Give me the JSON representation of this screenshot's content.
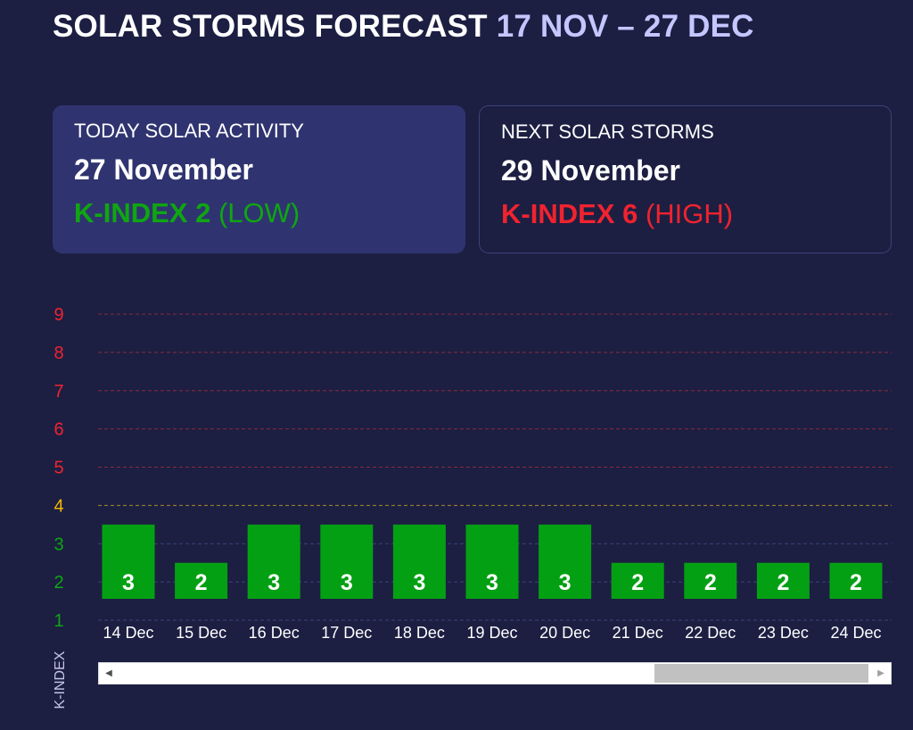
{
  "header": {
    "title": "SOLAR STORMS FORECAST",
    "range": "17 NOV – 27 DEC"
  },
  "today_card": {
    "label": "TODAY SOLAR ACTIVITY",
    "date": "27 November",
    "kindex": "K-INDEX 2",
    "level": "(LOW)"
  },
  "next_card": {
    "label": "NEXT SOLAR STORMS",
    "date": "29 November",
    "kindex": "K-INDEX 6",
    "level": "(HIGH)"
  },
  "colors": {
    "background": "#1c1f42",
    "bar": "#04a013",
    "low": "#0fa611",
    "moderate": "#f5b800",
    "high": "#f0232f"
  },
  "chart_data": {
    "type": "bar",
    "ylabel": "K-INDEX",
    "ylim": [
      1,
      9
    ],
    "yticks": [
      1,
      2,
      3,
      4,
      5,
      6,
      7,
      8,
      9
    ],
    "categories": [
      "14 Dec",
      "15 Dec",
      "16 Dec",
      "17 Dec",
      "18 Dec",
      "19 Dec",
      "20 Dec",
      "21 Dec",
      "22 Dec",
      "23 Dec",
      "24 Dec"
    ],
    "values": [
      3,
      2,
      3,
      3,
      3,
      3,
      3,
      2,
      2,
      2,
      2
    ],
    "grid": true,
    "data_labels": true
  },
  "scrollbar": {
    "left_arrow": "◀",
    "right_arrow": "▶"
  }
}
